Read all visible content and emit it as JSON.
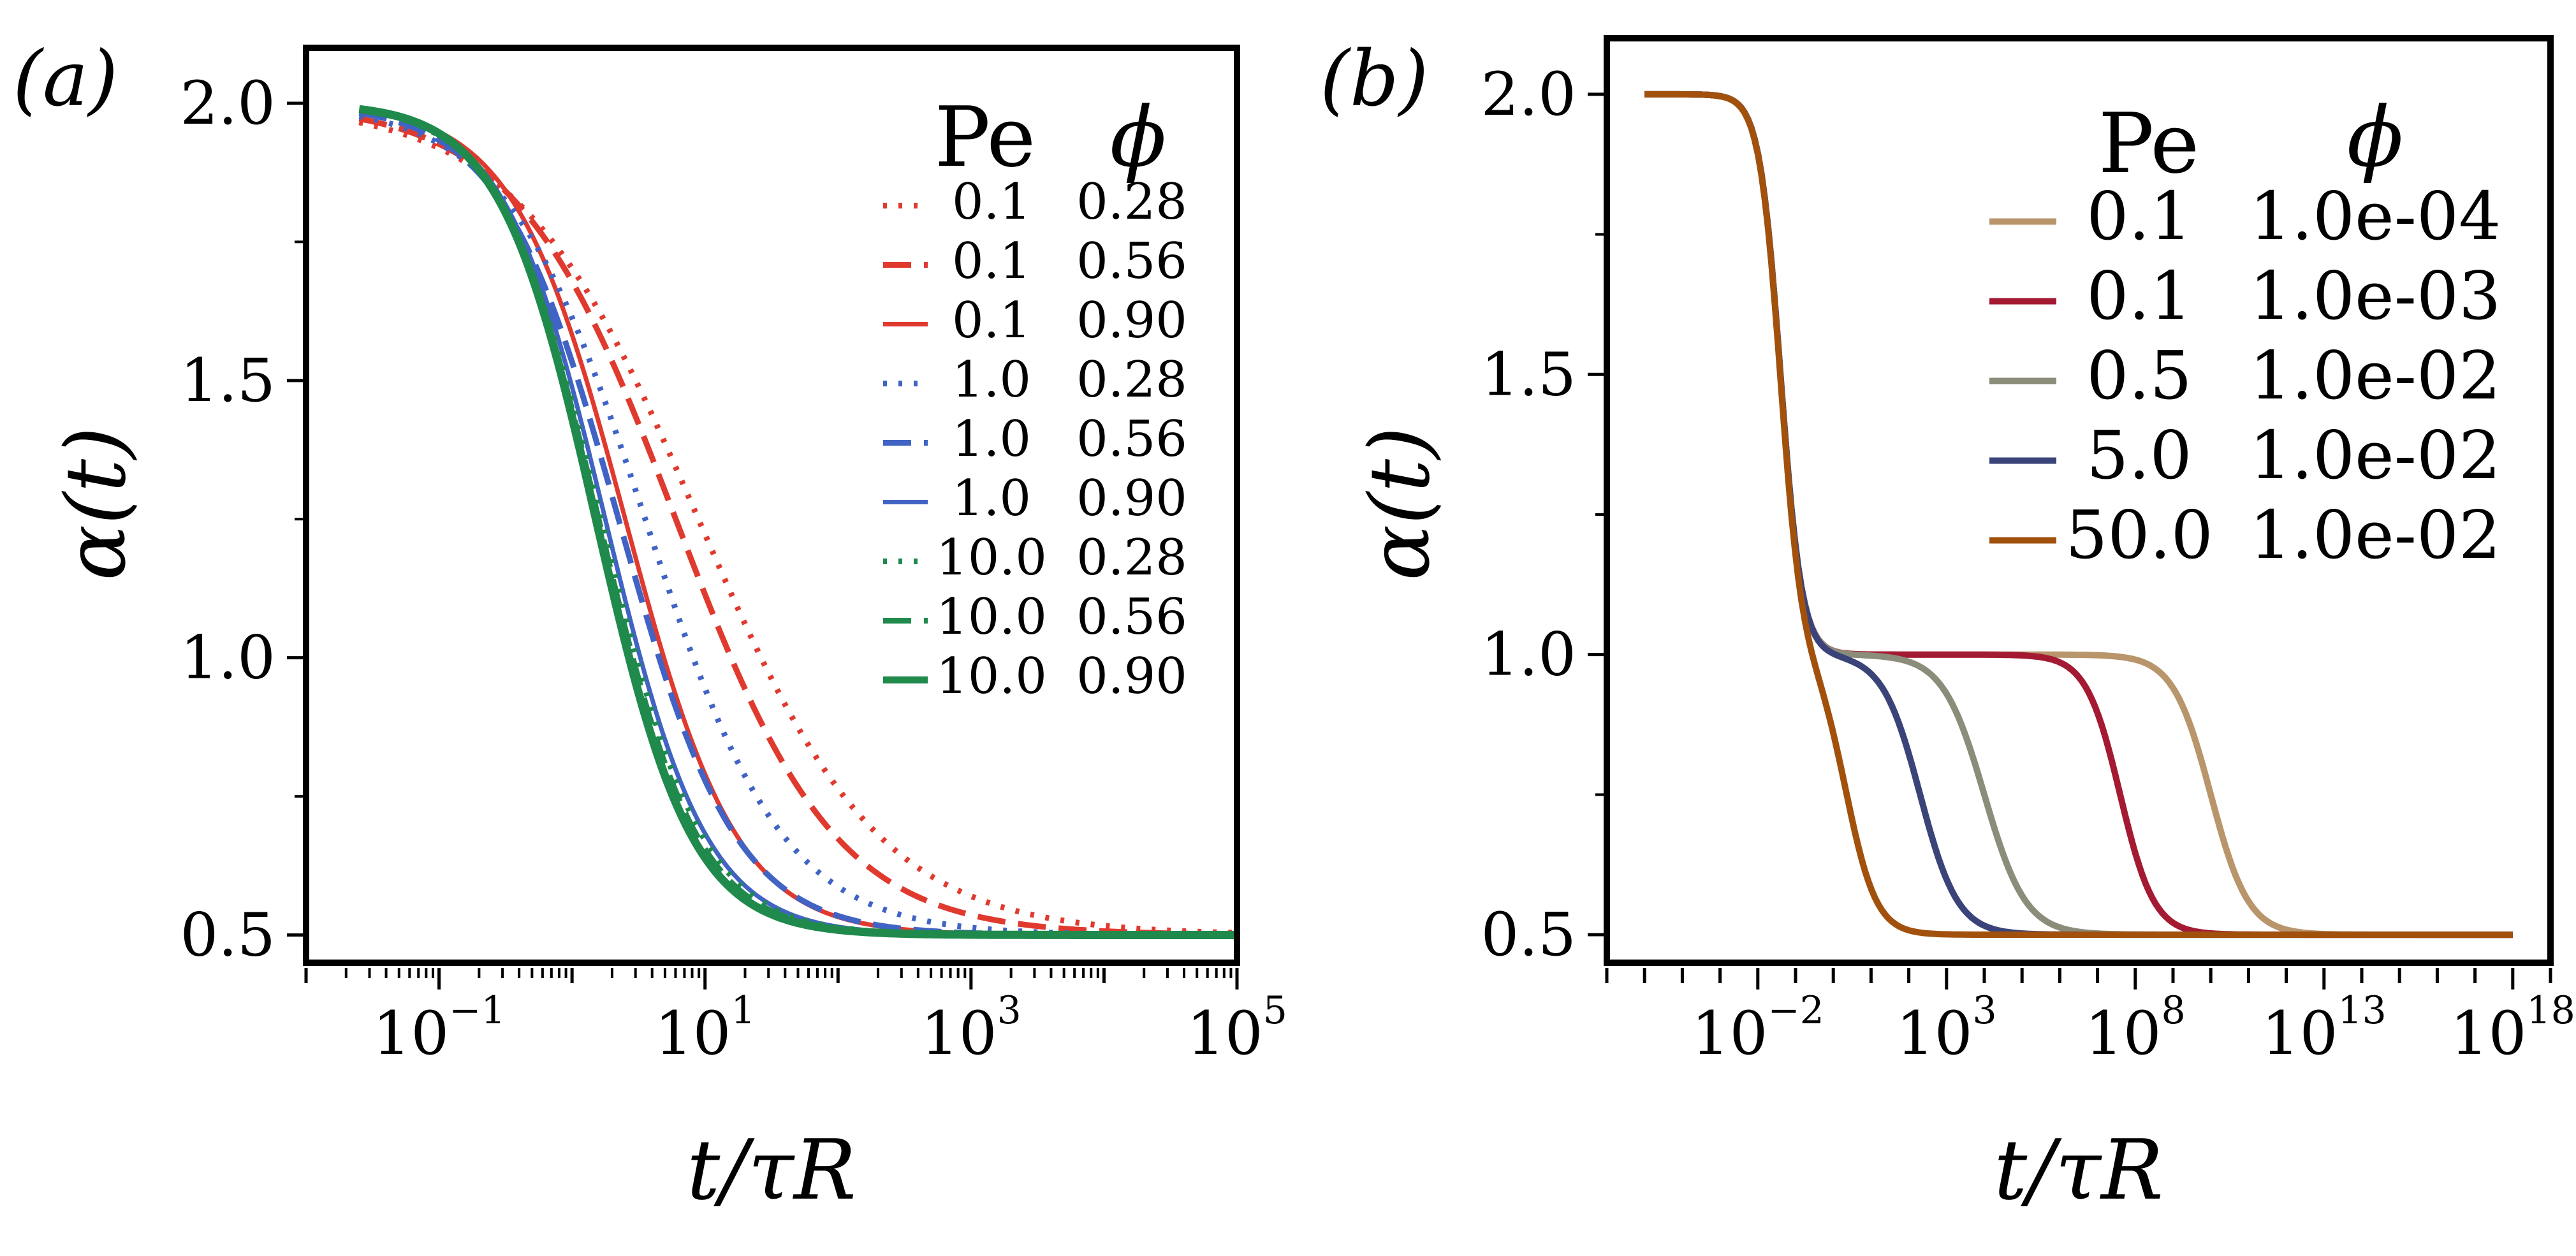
{
  "chart_data": [
    {
      "type": "line",
      "panel_label": "(a)",
      "xlabel": "t/τR",
      "ylabel": "α(t)",
      "xscale": "log",
      "xlim_exp": [
        -2,
        5
      ],
      "ylim": [
        0.45,
        2.1
      ],
      "yticks": [
        "0.5",
        "1.0",
        "1.5",
        "2.0"
      ],
      "xticks": [
        {
          "base": "10",
          "exp": "−1"
        },
        {
          "base": "10",
          "exp": "1"
        },
        {
          "base": "10",
          "exp": "3"
        },
        {
          "base": "10",
          "exp": "5"
        }
      ],
      "legend": {
        "header_pe": "Pe",
        "header_phi": "ϕ",
        "position": "top-right"
      },
      "series": [
        {
          "pe": "0.1",
          "phi": "0.28",
          "color": "#e03a2f",
          "style": "dotted",
          "width": 9,
          "mid": 0.95,
          "s": 0.68
        },
        {
          "pe": "0.1",
          "phi": "0.56",
          "color": "#e03a2f",
          "style": "dashed",
          "width": 9,
          "mid": 0.78,
          "s": 0.6
        },
        {
          "pe": "0.1",
          "phi": "0.90",
          "color": "#e03a2f",
          "style": "solid",
          "width": 7,
          "mid": 0.4,
          "s": 0.42
        },
        {
          "pe": "1.0",
          "phi": "0.28",
          "color": "#4063c4",
          "style": "dotted",
          "width": 9,
          "mid": 0.55,
          "s": 0.52
        },
        {
          "pe": "1.0",
          "phi": "0.56",
          "color": "#4063c4",
          "style": "dashed",
          "width": 9,
          "mid": 0.35,
          "s": 0.44
        },
        {
          "pe": "1.0",
          "phi": "0.90",
          "color": "#4063c4",
          "style": "solid",
          "width": 7,
          "mid": 0.25,
          "s": 0.38
        },
        {
          "pe": "10.0",
          "phi": "0.28",
          "color": "#1f8a4c",
          "style": "dotted",
          "width": 9,
          "mid": 0.22,
          "s": 0.38
        },
        {
          "pe": "10.0",
          "phi": "0.56",
          "color": "#1f8a4c",
          "style": "dashed",
          "width": 9,
          "mid": 0.2,
          "s": 0.37
        },
        {
          "pe": "10.0",
          "phi": "0.90",
          "color": "#1f8a4c",
          "style": "solid",
          "width": 13,
          "mid": 0.18,
          "s": 0.36
        }
      ]
    },
    {
      "type": "line",
      "panel_label": "(b)",
      "xlabel": "t/τR",
      "ylabel": "α(t)",
      "xscale": "log",
      "xlim_exp": [
        -6,
        19
      ],
      "ylim": [
        0.45,
        2.1
      ],
      "yticks": [
        "0.5",
        "1.0",
        "1.5",
        "2.0"
      ],
      "xticks": [
        {
          "base": "10",
          "exp": "−2"
        },
        {
          "base": "10",
          "exp": "3"
        },
        {
          "base": "10",
          "exp": "8"
        },
        {
          "base": "10",
          "exp": "13"
        },
        {
          "base": "10",
          "exp": "18"
        }
      ],
      "legend": {
        "header_pe": "Pe",
        "header_phi": "ϕ",
        "position": "top-right"
      },
      "series": [
        {
          "pe": "0.1",
          "phi": "1.0e-04",
          "color": "#b8956a",
          "width": 10,
          "mid2": 10.0,
          "s2": 0.5
        },
        {
          "pe": "0.1",
          "phi": "1.0e-03",
          "color": "#a31a32",
          "width": 10,
          "mid2": 7.6,
          "s2": 0.45
        },
        {
          "pe": "0.5",
          "phi": "1.0e-02",
          "color": "#8c8c7a",
          "width": 10,
          "mid2": 4.0,
          "s2": 0.55
        },
        {
          "pe": "5.0",
          "phi": "1.0e-02",
          "color": "#3b4478",
          "width": 10,
          "mid2": 2.3,
          "s2": 0.5
        },
        {
          "pe": "50.0",
          "phi": "1.0e-02",
          "color": "#a2510d",
          "width": 10,
          "mid2": 0.35,
          "s2": 0.4
        }
      ]
    }
  ]
}
